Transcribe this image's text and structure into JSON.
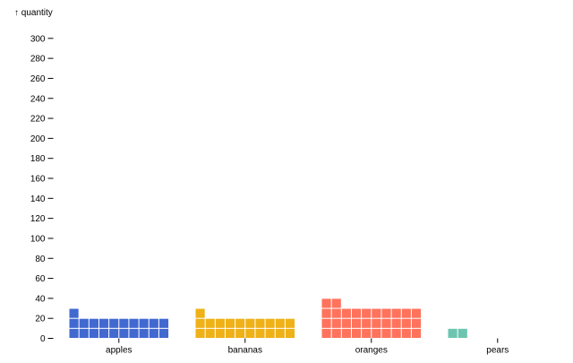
{
  "chart_data": {
    "type": "bar",
    "subtype": "waffle",
    "ylabel": "↑ quantity",
    "xlabel": "",
    "categories": [
      "apples",
      "bananas",
      "oranges",
      "pears"
    ],
    "values": [
      212,
      206,
      315,
      18
    ],
    "unit_per_cell": 10,
    "ylim": [
      0,
      320
    ],
    "yticks": [
      0,
      20,
      40,
      60,
      80,
      100,
      120,
      140,
      160,
      180,
      200,
      220,
      240,
      260,
      280,
      300
    ],
    "grid": false,
    "colors": {
      "apples": "#4269d0",
      "bananas": "#efb118",
      "oranges": "#ff725c",
      "pears": "#6cc5b0"
    }
  }
}
